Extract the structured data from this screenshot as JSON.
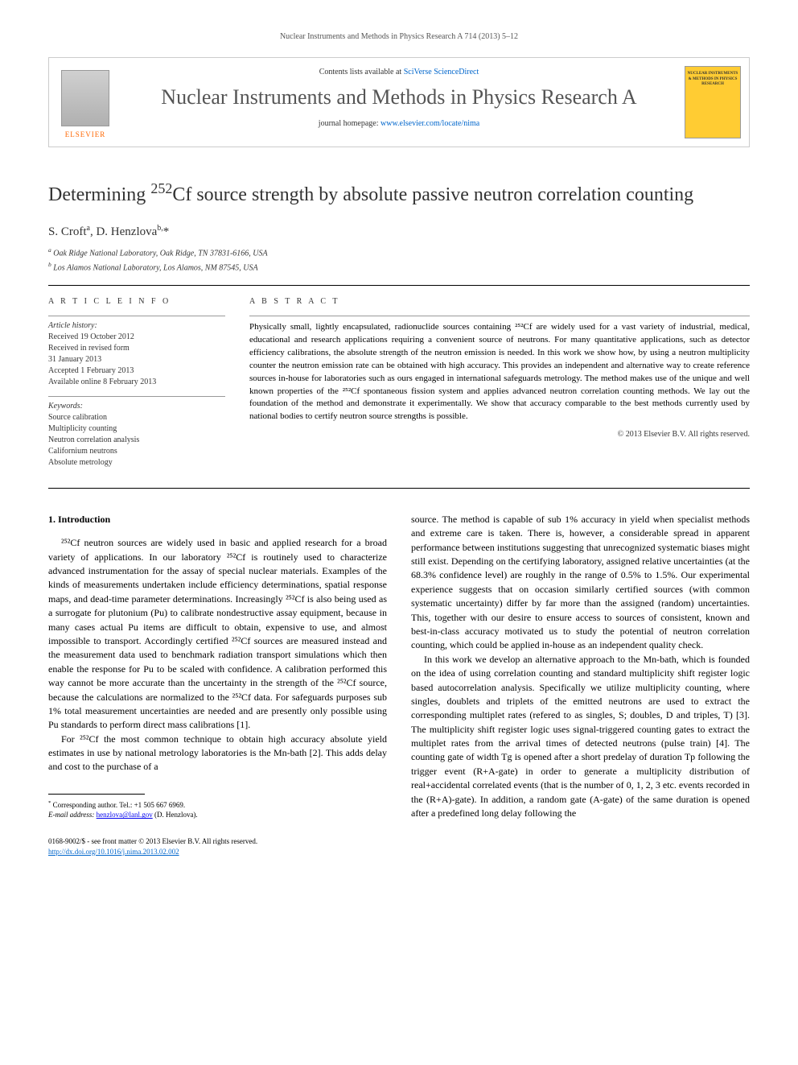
{
  "running_header": "Nuclear Instruments and Methods in Physics Research A 714 (2013) 5–12",
  "masthead": {
    "contents_prefix": "Contents lists available at ",
    "contents_link": "SciVerse ScienceDirect",
    "journal_name": "Nuclear Instruments and Methods in Physics Research A",
    "homepage_prefix": "journal homepage: ",
    "homepage_url": "www.elsevier.com/locate/nima",
    "publisher": "ELSEVIER",
    "cover_text": "NUCLEAR INSTRUMENTS & METHODS IN PHYSICS RESEARCH"
  },
  "title_pre": "Determining ",
  "title_sup": "252",
  "title_post": "Cf source strength by absolute passive neutron correlation counting",
  "authors_html": "S. Croft",
  "author_a_sup": "a",
  "author_sep": ", ",
  "author_b": "D. Henzlova",
  "author_b_sup": "b,",
  "author_star": "*",
  "affiliations": {
    "a": "Oak Ridge National Laboratory, Oak Ridge, TN 37831-6166, USA",
    "b": "Los Alamos National Laboratory, Los Alamos, NM 87545, USA"
  },
  "info": {
    "heading": "A R T I C L E   I N F O",
    "history_label": "Article history:",
    "history": "Received 19 October 2012\nReceived in revised form\n31 January 2013\nAccepted 1 February 2013\nAvailable online 8 February 2013",
    "keywords_label": "Keywords:",
    "keywords": "Source calibration\nMultiplicity counting\nNeutron correlation analysis\nCalifornium neutrons\nAbsolute metrology"
  },
  "abstract": {
    "heading": "A B S T R A C T",
    "text": "Physically small, lightly encapsulated, radionuclide sources containing ²⁵²Cf are widely used for a vast variety of industrial, medical, educational and research applications requiring a convenient source of neutrons. For many quantitative applications, such as detector efficiency calibrations, the absolute strength of the neutron emission is needed. In this work we show how, by using a neutron multiplicity counter the neutron emission rate can be obtained with high accuracy. This provides an independent and alternative way to create reference sources in-house for laboratories such as ours engaged in international safeguards metrology. The method makes use of the unique and well known properties of the ²⁵²Cf spontaneous fission system and applies advanced neutron correlation counting methods. We lay out the foundation of the method and demonstrate it experimentally. We show that accuracy comparable to the best methods currently used by national bodies to certify neutron source strengths is possible.",
    "copyright": "© 2013 Elsevier B.V. All rights reserved."
  },
  "body": {
    "section1_heading": "1.  Introduction",
    "col1_p1": "²⁵²Cf neutron sources are widely used in basic and applied research for a broad variety of applications. In our laboratory ²⁵²Cf is routinely used to characterize advanced instrumentation for the assay of special nuclear materials. Examples of the kinds of measurements undertaken include efficiency determinations, spatial response maps, and dead-time parameter determinations. Increasingly ²⁵²Cf is also being used as a surrogate for plutonium (Pu) to calibrate nondestructive assay equipment, because in many cases actual Pu items are difficult to obtain, expensive to use, and almost impossible to transport. Accordingly certified ²⁵²Cf sources are measured instead and the measurement data used to benchmark radiation transport simulations which then enable the response for Pu to be scaled with confidence. A calibration performed this way cannot be more accurate than the uncertainty in the strength of the ²⁵²Cf source, because the calculations are normalized to the ²⁵²Cf data. For safeguards purposes sub 1% total measurement uncertainties are needed and are presently only possible using Pu standards to perform direct mass calibrations [1].",
    "col1_p2": "For ²⁵²Cf the most common technique to obtain high accuracy absolute yield estimates in use by national metrology laboratories is the Mn-bath [2]. This adds delay and cost to the purchase of a",
    "col2_p1": "source. The method is capable of sub 1% accuracy in yield when specialist methods and extreme care is taken. There is, however, a considerable spread in apparent performance between institutions suggesting that unrecognized systematic biases might still exist. Depending on the certifying laboratory, assigned relative uncertainties (at the 68.3% confidence level) are roughly in the range of 0.5% to 1.5%. Our experimental experience suggests that on occasion similarly certified sources (with common systematic uncertainty) differ by far more than the assigned (random) uncertainties. This, together with our desire to ensure access to sources of consistent, known and best-in-class accuracy motivated us to study the potential of neutron correlation counting, which could be applied in-house as an independent quality check.",
    "col2_p2": "In this work we develop an alternative approach to the Mn-bath, which is founded on the idea of using correlation counting and standard multiplicity shift register logic based autocorrelation analysis. Specifically we utilize multiplicity counting, where singles, doublets and triplets of the emitted neutrons are used to extract the corresponding multiplet rates (refered to as singles, S; doubles, D and triples, T) [3]. The multiplicity shift register logic uses signal-triggered counting gates to extract the multiplet rates from the arrival times of detected neutrons (pulse train) [4]. The counting gate of width Tg is opened after a short predelay of duration Tp following the trigger event (R+A-gate) in order to generate a multiplicity distribution of real+accidental correlated events (that is the number of 0, 1, 2, 3 etc. events recorded in the (R+A)-gate). In addition, a random gate (A-gate) of the same duration is opened after a predefined long delay following the"
  },
  "footnote": {
    "corr": "Corresponding author. Tel.: +1 505 667 6969.",
    "email_label": "E-mail address: ",
    "email": "henzlova@lanl.gov",
    "email_who": " (D. Henzlova)."
  },
  "doi": {
    "line1": "0168-9002/$ - see front matter © 2013 Elsevier B.V. All rights reserved.",
    "line2": "http://dx.doi.org/10.1016/j.nima.2013.02.002"
  },
  "colors": {
    "link": "#0066cc",
    "orange": "#ff6600",
    "cover": "#ffcc33"
  }
}
